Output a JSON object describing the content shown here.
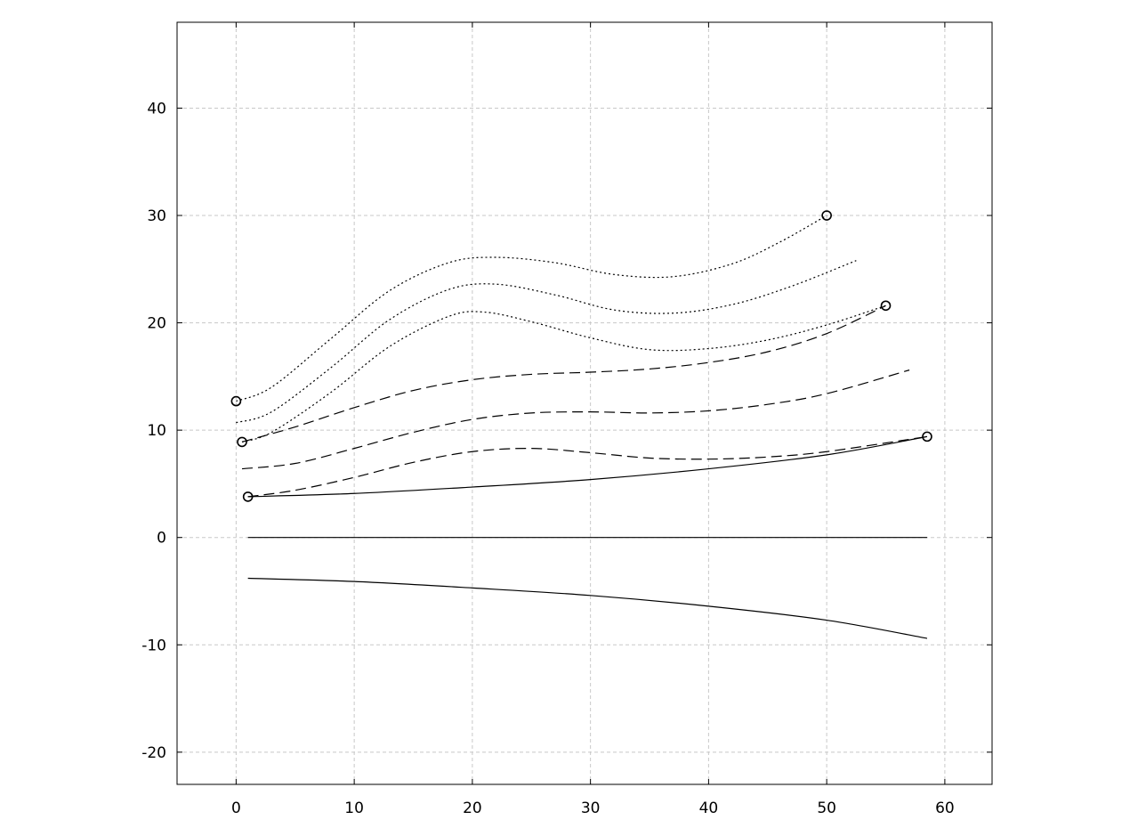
{
  "chart_data": {
    "type": "line",
    "title": "",
    "xlabel": "",
    "ylabel": "",
    "xlim": [
      -5,
      64
    ],
    "ylim": [
      -23,
      48
    ],
    "xticks": [
      0,
      10,
      20,
      30,
      40,
      50,
      60
    ],
    "yticks": [
      -20,
      -10,
      0,
      10,
      20,
      30,
      40
    ],
    "xtick_labels": [
      "0",
      "10",
      "20",
      "30",
      "40",
      "50",
      "60"
    ],
    "ytick_labels": [
      "-20",
      "-10",
      "0",
      "10",
      "20",
      "30",
      "40"
    ],
    "grid": true,
    "line_color": "#000000",
    "grid_color": "#c8c8c8",
    "series": [
      {
        "style": "dotted",
        "x": [
          0,
          3,
          8,
          13,
          18,
          22,
          27,
          32,
          37,
          42,
          46,
          50
        ],
        "y": [
          12.7,
          14.0,
          18.5,
          23.0,
          25.6,
          26.1,
          25.6,
          24.5,
          24.3,
          25.5,
          27.5,
          30.0
        ]
      },
      {
        "style": "dotted",
        "x": [
          0,
          3,
          8,
          13,
          18,
          22,
          27,
          32,
          37,
          42,
          47,
          52.5
        ],
        "y": [
          10.7,
          11.7,
          15.8,
          20.3,
          23.1,
          23.6,
          22.6,
          21.2,
          20.9,
          21.7,
          23.4,
          25.8
        ]
      },
      {
        "style": "dotted",
        "x": [
          0.5,
          3,
          8,
          13,
          18,
          21,
          25,
          30,
          35,
          40,
          45,
          50,
          55
        ],
        "y": [
          8.9,
          9.8,
          13.5,
          17.8,
          20.6,
          21.0,
          20.1,
          18.6,
          17.5,
          17.6,
          18.4,
          19.8,
          21.6
        ]
      },
      {
        "style": "dashed",
        "x": [
          0.5,
          5,
          10,
          15,
          20,
          25,
          30,
          35,
          40,
          45,
          50,
          55
        ],
        "y": [
          8.9,
          10.3,
          12.1,
          13.7,
          14.7,
          15.2,
          15.4,
          15.7,
          16.3,
          17.3,
          19.0,
          21.6
        ]
      },
      {
        "style": "dashed",
        "x": [
          0.5,
          5,
          10,
          15,
          20,
          25,
          30,
          35,
          40,
          45,
          50,
          57
        ],
        "y": [
          6.4,
          6.9,
          8.3,
          9.8,
          11.0,
          11.6,
          11.7,
          11.6,
          11.8,
          12.4,
          13.4,
          15.6
        ]
      },
      {
        "style": "dashed",
        "x": [
          1,
          5,
          10,
          15,
          20,
          25,
          30,
          35,
          40,
          45,
          50,
          58.5
        ],
        "y": [
          3.8,
          4.4,
          5.6,
          7.0,
          8.0,
          8.3,
          7.9,
          7.4,
          7.3,
          7.5,
          8.0,
          9.4
        ]
      },
      {
        "style": "solid",
        "x": [
          1,
          10,
          20,
          30,
          40,
          50,
          58.5
        ],
        "y": [
          3.8,
          4.1,
          4.7,
          5.4,
          6.4,
          7.7,
          9.4
        ]
      },
      {
        "style": "solid",
        "x": [
          1,
          58.5
        ],
        "y": [
          0,
          0
        ]
      },
      {
        "style": "solid",
        "x": [
          1,
          10,
          20,
          30,
          40,
          50,
          58.5
        ],
        "y": [
          -3.8,
          -4.1,
          -4.7,
          -5.4,
          -6.4,
          -7.7,
          -9.4
        ]
      }
    ],
    "markers": {
      "shape": "open-circle",
      "points": [
        {
          "x": 0,
          "y": 12.7
        },
        {
          "x": 50,
          "y": 30.0
        },
        {
          "x": 0.5,
          "y": 8.9
        },
        {
          "x": 55,
          "y": 21.6
        },
        {
          "x": 1,
          "y": 3.8
        },
        {
          "x": 58.5,
          "y": 9.4
        }
      ]
    }
  }
}
